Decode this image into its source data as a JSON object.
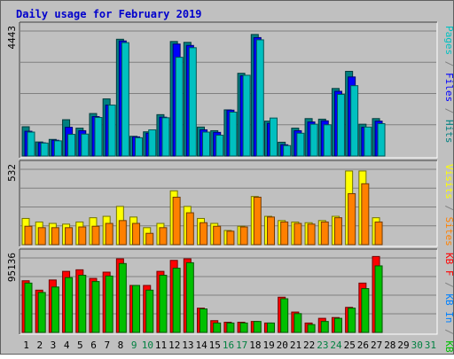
{
  "colors": {
    "page_bg": "#c0c0c0",
    "panel_bg": "#c0c0c0",
    "grid": "#808080",
    "title": "#0000cc",
    "pages": "#00c0c0",
    "files": "#0000ff",
    "hits": "#008080",
    "visits": "#ffff00",
    "sites": "#ff8000",
    "kb_f": "#ff0000",
    "kb_in": "#0080ff",
    "kb_out": "#00c000",
    "day_weekday": "#000000",
    "day_weekend": "#008040"
  },
  "chart_data": {
    "type": "bar",
    "title": "Daily usage for February 2019",
    "days": [
      "1",
      "2",
      "3",
      "4",
      "5",
      "6",
      "7",
      "8",
      "9",
      "10",
      "11",
      "12",
      "13",
      "14",
      "15",
      "16",
      "17",
      "18",
      "19",
      "20",
      "21",
      "22",
      "23",
      "24",
      "25",
      "26",
      "27",
      "28",
      "29",
      "30",
      "31"
    ],
    "weekend_days": [
      "9",
      "10",
      "16",
      "17",
      "23",
      "24",
      "30",
      "31"
    ],
    "panels": [
      {
        "id": "hits",
        "ymax_label": "4443",
        "ymax": 4443,
        "legend": [
          {
            "text": "Pages",
            "color_key": "pages"
          },
          {
            "text": " / ",
            "color_key": "grid"
          },
          {
            "text": "Files",
            "color_key": "files"
          },
          {
            "text": " / ",
            "color_key": "grid"
          },
          {
            "text": "Hits",
            "color_key": "hits"
          }
        ],
        "series": [
          {
            "key": "hits",
            "values": [
              1040,
              500,
              590,
              1290,
              990,
              1510,
              2030,
              4150,
              700,
              860,
              1470,
              4070,
              4040,
              1030,
              900,
              1640,
              2940,
              4320,
              1240,
              490,
              990,
              1330,
              1310,
              2400,
              3010,
              1130,
              1330,
              0,
              0,
              0,
              0
            ]
          },
          {
            "key": "files",
            "values": [
              880,
              470,
              560,
              1020,
              900,
              1400,
              1810,
              4090,
              680,
              810,
              1380,
              3980,
              3930,
              930,
              840,
              1630,
              2850,
              4210,
              1160,
              400,
              900,
              1210,
              1250,
              2300,
              2810,
              1020,
              1240,
              0,
              0,
              0,
              0
            ]
          },
          {
            "key": "pages",
            "values": [
              850,
              460,
              540,
              770,
              780,
              1370,
              1810,
              4030,
              650,
              930,
              1360,
              3510,
              3850,
              850,
              740,
              1560,
              2870,
              4130,
              1350,
              370,
              810,
              1130,
              1110,
              2190,
              2500,
              1030,
              1150,
              0,
              0,
              0,
              0
            ]
          }
        ]
      },
      {
        "id": "visits",
        "ymax_label": "532",
        "ymax": 532,
        "legend": [
          {
            "text": "Visits",
            "color_key": "visits"
          },
          {
            "text": " / ",
            "color_key": "grid"
          },
          {
            "text": "Sites",
            "color_key": "sites"
          }
        ],
        "series": [
          {
            "key": "visits",
            "values": [
              185,
              160,
              150,
              145,
              160,
              190,
              200,
              270,
              195,
              120,
              150,
              380,
              270,
              185,
              150,
              100,
              130,
              340,
              200,
              170,
              160,
              155,
              170,
              200,
              520,
              520,
              190,
              0,
              0,
              0,
              0
            ]
          },
          {
            "key": "sites",
            "values": [
              130,
              120,
              120,
              120,
              125,
              130,
              150,
              170,
              150,
              80,
              120,
              335,
              225,
              155,
              130,
              95,
              125,
              335,
              195,
              160,
              150,
              145,
              160,
              190,
              360,
              430,
              160,
              0,
              0,
              0,
              0
            ]
          }
        ]
      },
      {
        "id": "kbytes",
        "ymax_label": "95136",
        "ymax": 95136,
        "legend": [
          {
            "text": "KB F",
            "color_key": "kb_f"
          },
          {
            "text": " / ",
            "color_key": "grid"
          },
          {
            "text": "KB In",
            "color_key": "kb_in"
          },
          {
            "text": " / ",
            "color_key": "grid"
          },
          {
            "text": "KB Out",
            "color_key": "kb_out"
          }
        ],
        "series": [
          {
            "key": "kb_f",
            "values": [
              66000,
              54000,
              67000,
              78000,
              80000,
              69000,
              77000,
              94000,
              60000,
              60000,
              78000,
              92000,
              94000,
              31000,
              15000,
              13000,
              13000,
              14000,
              12000,
              45000,
              26000,
              12000,
              18000,
              19000,
              32000,
              63000,
              97000,
              0,
              0,
              0,
              0
            ]
          },
          {
            "key": "kb_out",
            "values": [
              63000,
              51000,
              58000,
              70000,
              73000,
              65000,
              72000,
              88000,
              60000,
              54000,
              73000,
              82000,
              89000,
              30000,
              12000,
              12000,
              12000,
              14000,
              12000,
              43000,
              24000,
              10000,
              14000,
              18000,
              31000,
              56000,
              85000,
              0,
              0,
              0,
              0
            ]
          }
        ]
      }
    ]
  }
}
